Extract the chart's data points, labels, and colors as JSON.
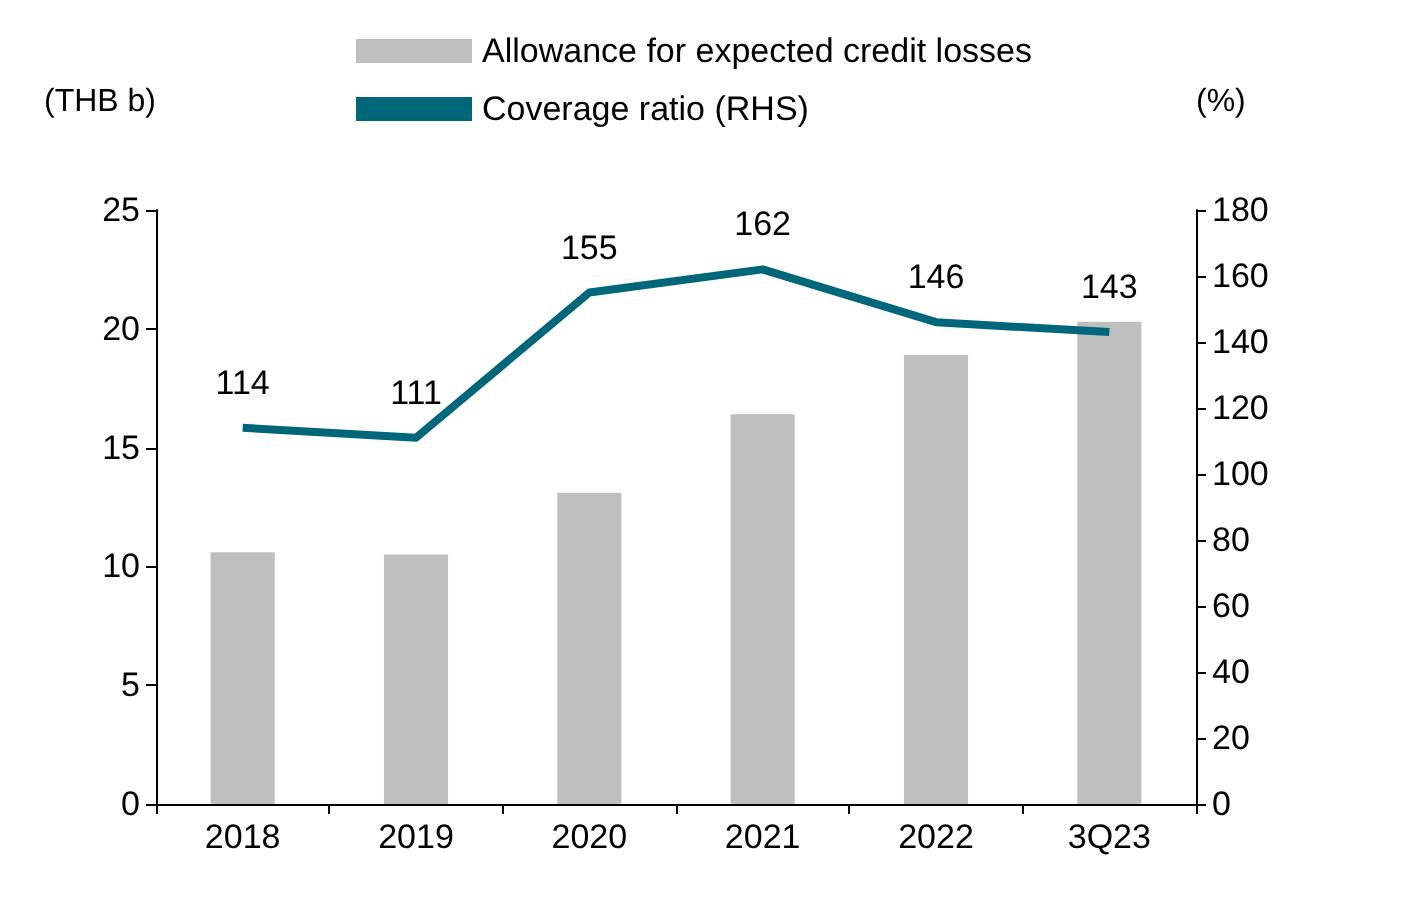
{
  "chart_data": {
    "type": "bar",
    "ylabel": "(THB b)",
    "y2label": "(%)",
    "categories": [
      "2018",
      "2019",
      "2020",
      "2021",
      "2022",
      "3Q23"
    ],
    "series": [
      {
        "name": "Allowance for expected credit losses",
        "color": "#bfbfbf",
        "values": [
          10.6,
          10.5,
          13.1,
          16.4,
          18.9,
          20.3
        ]
      },
      {
        "name": "Coverage ratio (RHS)",
        "type": "line",
        "axis": "y2",
        "color": "#00667a",
        "values": [
          114,
          111,
          155,
          162,
          146,
          143
        ],
        "data_labels": true
      }
    ],
    "ylim": [
      0,
      25
    ],
    "yticks": [
      0,
      5,
      10,
      15,
      20,
      25
    ],
    "y2lim": [
      0,
      180
    ],
    "y2ticks": [
      0,
      20,
      40,
      60,
      80,
      100,
      120,
      140,
      160,
      180
    ],
    "grid": false,
    "legend": "top",
    "marker": "none"
  }
}
